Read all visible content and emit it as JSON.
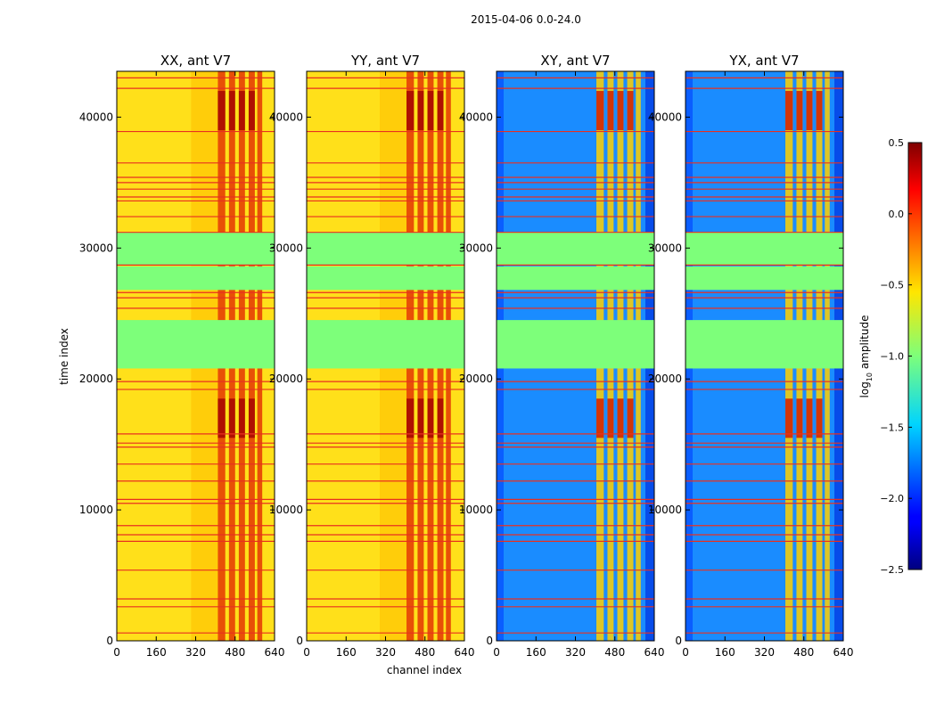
{
  "figure_title": "2015-04-06 0.0-24.0",
  "chart_data": {
    "type": "heatmap",
    "shared_axes": {
      "xlabel": "channel index",
      "ylabel": "time index",
      "xlim": [
        0,
        640
      ],
      "ylim": [
        0,
        43500
      ],
      "xticks": [
        0,
        160,
        320,
        480,
        640
      ],
      "xtick_labels": [
        "0",
        "160",
        "320",
        "480",
        "640"
      ],
      "yticks": [
        0,
        10000,
        20000,
        30000,
        40000
      ],
      "ytick_labels": [
        "0",
        "10000",
        "20000",
        "30000",
        "40000"
      ]
    },
    "panels": [
      {
        "title": "XX, ant V7",
        "kind": "auto",
        "bg": "#ffe01a",
        "hot_start": 410,
        "hot_color": "#e02000",
        "strong_color": "#a00000",
        "show_ylabel": true
      },
      {
        "title": "YY, ant V7",
        "kind": "auto",
        "bg": "#ffe01a",
        "hot_start": 405,
        "hot_color": "#e02000",
        "strong_color": "#a00000",
        "show_ylabel": false
      },
      {
        "title": "XY, ant V7",
        "kind": "cross",
        "bg": "#1a8cff",
        "hot_start": 405,
        "hot_color": "#ffd000",
        "strong_color": "#d01000",
        "show_ylabel": false
      },
      {
        "title": "YX, ant V7",
        "kind": "cross",
        "bg": "#1a8cff",
        "hot_start": 405,
        "hot_color": "#ffd000",
        "strong_color": "#d01000",
        "show_ylabel": false
      }
    ],
    "flagged_bands": [
      {
        "from": 20800,
        "to": 24500
      },
      {
        "from": 26800,
        "to": 28600
      },
      {
        "from": 28700,
        "to": 31200
      }
    ],
    "flag_color": "#7dff7a",
    "strong_bands": [
      {
        "from": 15500,
        "to": 18500
      },
      {
        "from": 39000,
        "to": 42000
      }
    ],
    "rfi_lines": [
      600,
      2600,
      3200,
      5400,
      7600,
      8100,
      8800,
      10500,
      10800,
      12200,
      13500,
      14800,
      15100,
      15800,
      19200,
      19800,
      25400,
      26200,
      26600,
      28700,
      31200,
      32400,
      33600,
      33900,
      34500,
      35000,
      35400,
      36500,
      38900,
      42200,
      43000
    ],
    "rfi_color": "#e83020",
    "colorbar": {
      "label": "log",
      "label_sub": "10",
      "label_rest": " amplitude",
      "range": [
        -2.5,
        0.5
      ],
      "ticks": [
        0.5,
        0.0,
        -0.5,
        -1.0,
        -1.5,
        -2.0,
        -2.5
      ],
      "tick_labels": [
        "0.5",
        "0.0",
        "−0.5",
        "−1.0",
        "−1.5",
        "−2.0",
        "−2.5"
      ],
      "colormap": "jet"
    }
  }
}
